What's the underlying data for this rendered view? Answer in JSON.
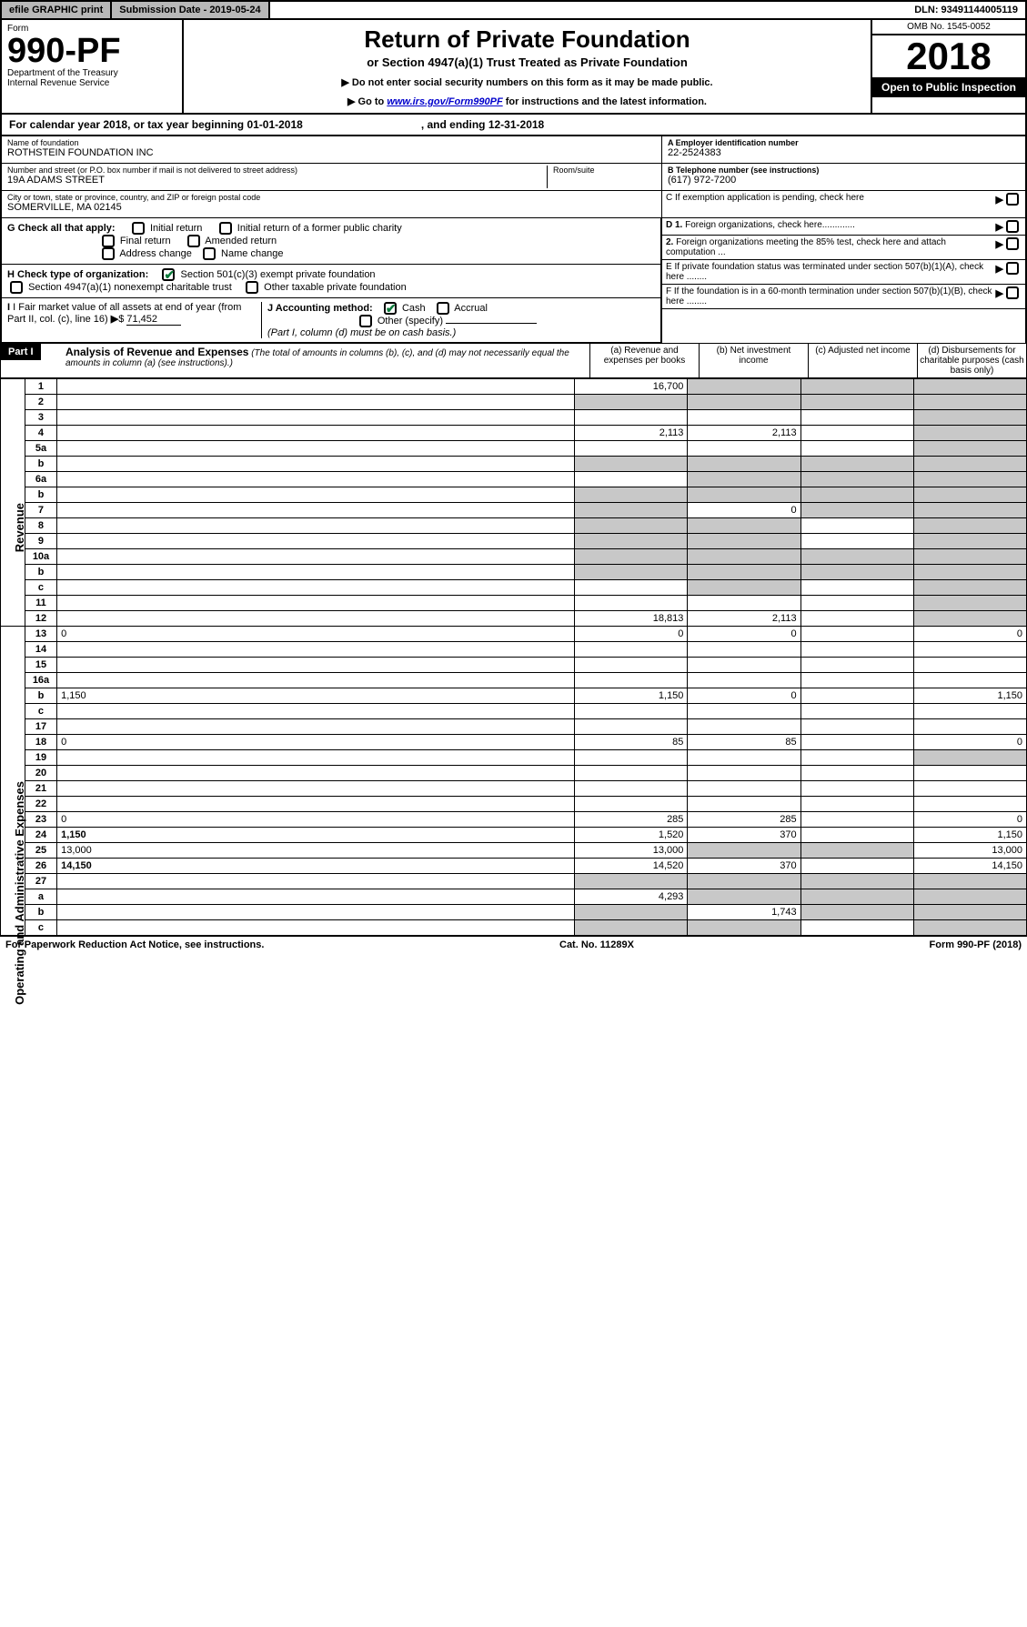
{
  "topbar": {
    "efile": "efile GRAPHIC print",
    "submission": "Submission Date - 2019-05-24",
    "dln": "DLN: 93491144005119"
  },
  "header": {
    "form_label": "Form",
    "form_number": "990-PF",
    "dept1": "Department of the Treasury",
    "dept2": "Internal Revenue Service",
    "title": "Return of Private Foundation",
    "subtitle": "or Section 4947(a)(1) Trust Treated as Private Foundation",
    "inst1": "▶ Do not enter social security numbers on this form as it may be made public.",
    "inst2_pre": "▶ Go to ",
    "inst2_link": "www.irs.gov/Form990PF",
    "inst2_post": " for instructions and the latest information.",
    "omb": "OMB No. 1545-0052",
    "year": "2018",
    "open": "Open to Public Inspection"
  },
  "calyear": {
    "text": "For calendar year 2018, or tax year beginning 01-01-2018",
    "ending": ", and ending 12-31-2018"
  },
  "foundation": {
    "name_label": "Name of foundation",
    "name": "ROTHSTEIN FOUNDATION INC",
    "addr_label": "Number and street (or P.O. box number if mail is not delivered to street address)",
    "addr": "19A ADAMS STREET",
    "room_label": "Room/suite",
    "city_label": "City or town, state or province, country, and ZIP or foreign postal code",
    "city": "SOMERVILLE, MA  02145",
    "ein_label": "A Employer identification number",
    "ein": "22-2524383",
    "phone_label": "B Telephone number (see instructions)",
    "phone": "(617) 972-7200",
    "c_label": "C If exemption application is pending, check here"
  },
  "checks": {
    "g_label": "G Check all that apply:",
    "initial": "Initial return",
    "initial_former": "Initial return of a former public charity",
    "final": "Final return",
    "amended": "Amended return",
    "addr_change": "Address change",
    "name_change": "Name change",
    "h_label": "H Check type of organization:",
    "h1": "Section 501(c)(3) exempt private foundation",
    "h2": "Section 4947(a)(1) nonexempt charitable trust",
    "h3": "Other taxable private foundation",
    "i_label": "I Fair market value of all assets at end of year (from Part II, col. (c), line 16)",
    "i_value": "71,452",
    "j_label": "J Accounting method:",
    "j_cash": "Cash",
    "j_accrual": "Accrual",
    "j_other": "Other (specify)",
    "j_note": "(Part I, column (d) must be on cash basis.)",
    "d1": "D 1. Foreign organizations, check here.............",
    "d2": "2. Foreign organizations meeting the 85% test, check here and attach computation ...",
    "e_label": "E  If private foundation status was terminated under section 507(b)(1)(A), check here ........",
    "f_label": "F  If the foundation is in a 60-month termination under section 507(b)(1)(B), check here ........"
  },
  "partI": {
    "label": "Part I",
    "title": "Analysis of Revenue and Expenses",
    "note": "(The total of amounts in columns (b), (c), and (d) may not necessarily equal the amounts in column (a) (see instructions).)",
    "col_a": "(a) Revenue and expenses per books",
    "col_b": "(b) Net investment income",
    "col_c": "(c) Adjusted net income",
    "col_d": "(d) Disbursements for charitable purposes (cash basis only)"
  },
  "sections": {
    "revenue": "Revenue",
    "expenses": "Operating and Administrative Expenses"
  },
  "rows": [
    {
      "n": "1",
      "d": "",
      "a": "16,700",
      "b": "",
      "c": "",
      "ash": false,
      "bsh": true,
      "csh": true,
      "dsh": true
    },
    {
      "n": "2",
      "d": "",
      "a": "",
      "b": "",
      "c": "",
      "ash": true,
      "bsh": true,
      "csh": true,
      "dsh": true,
      "dots": true
    },
    {
      "n": "3",
      "d": "",
      "a": "",
      "b": "",
      "c": "",
      "ash": false,
      "bsh": false,
      "csh": false,
      "dsh": true
    },
    {
      "n": "4",
      "d": "",
      "a": "2,113",
      "b": "2,113",
      "c": "",
      "ash": false,
      "bsh": false,
      "csh": false,
      "dsh": true
    },
    {
      "n": "5a",
      "d": "",
      "a": "",
      "b": "",
      "c": "",
      "ash": false,
      "bsh": false,
      "csh": false,
      "dsh": true
    },
    {
      "n": "b",
      "d": "",
      "a": "",
      "b": "",
      "c": "",
      "ash": true,
      "bsh": true,
      "csh": true,
      "dsh": true
    },
    {
      "n": "6a",
      "d": "",
      "a": "",
      "b": "",
      "c": "",
      "ash": false,
      "bsh": true,
      "csh": true,
      "dsh": true
    },
    {
      "n": "b",
      "d": "",
      "a": "",
      "b": "",
      "c": "",
      "ash": true,
      "bsh": true,
      "csh": true,
      "dsh": true
    },
    {
      "n": "7",
      "d": "",
      "a": "",
      "b": "0",
      "c": "",
      "ash": true,
      "bsh": false,
      "csh": true,
      "dsh": true
    },
    {
      "n": "8",
      "d": "",
      "a": "",
      "b": "",
      "c": "",
      "ash": true,
      "bsh": true,
      "csh": false,
      "dsh": true
    },
    {
      "n": "9",
      "d": "",
      "a": "",
      "b": "",
      "c": "",
      "ash": true,
      "bsh": true,
      "csh": false,
      "dsh": true
    },
    {
      "n": "10a",
      "d": "",
      "a": "",
      "b": "",
      "c": "",
      "ash": true,
      "bsh": true,
      "csh": true,
      "dsh": true
    },
    {
      "n": "b",
      "d": "",
      "a": "",
      "b": "",
      "c": "",
      "ash": true,
      "bsh": true,
      "csh": true,
      "dsh": true
    },
    {
      "n": "c",
      "d": "",
      "a": "",
      "b": "",
      "c": "",
      "ash": false,
      "bsh": true,
      "csh": false,
      "dsh": true
    },
    {
      "n": "11",
      "d": "",
      "a": "",
      "b": "",
      "c": "",
      "ash": false,
      "bsh": false,
      "csh": false,
      "dsh": true
    },
    {
      "n": "12",
      "d": "",
      "a": "18,813",
      "b": "2,113",
      "c": "",
      "ash": false,
      "bsh": false,
      "csh": false,
      "dsh": true,
      "bold": true
    },
    {
      "n": "13",
      "d": "0",
      "a": "0",
      "b": "0",
      "c": "",
      "ash": false,
      "bsh": false,
      "csh": false,
      "dsh": false
    },
    {
      "n": "14",
      "d": "",
      "a": "",
      "b": "",
      "c": "",
      "ash": false,
      "bsh": false,
      "csh": false,
      "dsh": false
    },
    {
      "n": "15",
      "d": "",
      "a": "",
      "b": "",
      "c": "",
      "ash": false,
      "bsh": false,
      "csh": false,
      "dsh": false
    },
    {
      "n": "16a",
      "d": "",
      "a": "",
      "b": "",
      "c": "",
      "ash": false,
      "bsh": false,
      "csh": false,
      "dsh": false
    },
    {
      "n": "b",
      "d": "1,150",
      "a": "1,150",
      "b": "0",
      "c": "",
      "ash": false,
      "bsh": false,
      "csh": false,
      "dsh": false
    },
    {
      "n": "c",
      "d": "",
      "a": "",
      "b": "",
      "c": "",
      "ash": false,
      "bsh": false,
      "csh": false,
      "dsh": false
    },
    {
      "n": "17",
      "d": "",
      "a": "",
      "b": "",
      "c": "",
      "ash": false,
      "bsh": false,
      "csh": false,
      "dsh": false
    },
    {
      "n": "18",
      "d": "0",
      "a": "85",
      "b": "85",
      "c": "",
      "ash": false,
      "bsh": false,
      "csh": false,
      "dsh": false
    },
    {
      "n": "19",
      "d": "",
      "a": "",
      "b": "",
      "c": "",
      "ash": false,
      "bsh": false,
      "csh": false,
      "dsh": true
    },
    {
      "n": "20",
      "d": "",
      "a": "",
      "b": "",
      "c": "",
      "ash": false,
      "bsh": false,
      "csh": false,
      "dsh": false
    },
    {
      "n": "21",
      "d": "",
      "a": "",
      "b": "",
      "c": "",
      "ash": false,
      "bsh": false,
      "csh": false,
      "dsh": false
    },
    {
      "n": "22",
      "d": "",
      "a": "",
      "b": "",
      "c": "",
      "ash": false,
      "bsh": false,
      "csh": false,
      "dsh": false
    },
    {
      "n": "23",
      "d": "0",
      "a": "285",
      "b": "285",
      "c": "",
      "ash": false,
      "bsh": false,
      "csh": false,
      "dsh": false
    },
    {
      "n": "24",
      "d": "1,150",
      "a": "1,520",
      "b": "370",
      "c": "",
      "ash": false,
      "bsh": false,
      "csh": false,
      "dsh": false,
      "bold": true
    },
    {
      "n": "25",
      "d": "13,000",
      "a": "13,000",
      "b": "",
      "c": "",
      "ash": false,
      "bsh": true,
      "csh": true,
      "dsh": false
    },
    {
      "n": "26",
      "d": "14,150",
      "a": "14,520",
      "b": "370",
      "c": "",
      "ash": false,
      "bsh": false,
      "csh": false,
      "dsh": false,
      "bold": true
    },
    {
      "n": "27",
      "d": "",
      "a": "",
      "b": "",
      "c": "",
      "ash": true,
      "bsh": true,
      "csh": true,
      "dsh": true
    },
    {
      "n": "a",
      "d": "",
      "a": "4,293",
      "b": "",
      "c": "",
      "ash": false,
      "bsh": true,
      "csh": true,
      "dsh": true,
      "bold": true
    },
    {
      "n": "b",
      "d": "",
      "a": "",
      "b": "1,743",
      "c": "",
      "ash": true,
      "bsh": false,
      "csh": true,
      "dsh": true,
      "bold": true
    },
    {
      "n": "c",
      "d": "",
      "a": "",
      "b": "",
      "c": "",
      "ash": true,
      "bsh": true,
      "csh": false,
      "dsh": true,
      "bold": true
    }
  ],
  "footer": {
    "left": "For Paperwork Reduction Act Notice, see instructions.",
    "center": "Cat. No. 11289X",
    "right": "Form 990-PF (2018)"
  }
}
